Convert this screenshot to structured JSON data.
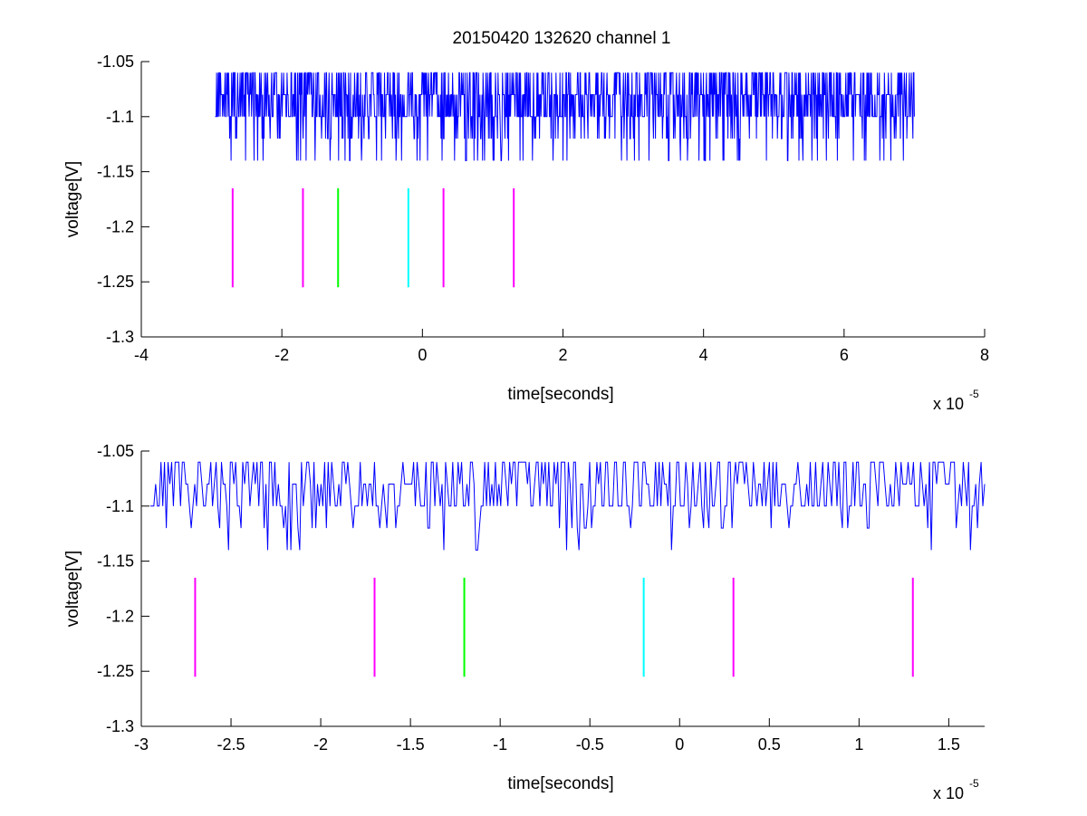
{
  "figure": {
    "title": "20150420 132620 channel 1",
    "background": "#ffffff",
    "trace_color": "#0000ff"
  },
  "chart_data": [
    {
      "type": "line",
      "title": "20150420 132620 channel 1",
      "xlabel": "time[seconds]",
      "ylabel": "voltage[V]",
      "x_multiplier_text": "x 10",
      "x_multiplier_exponent": "-5",
      "x_scale": 1e-05,
      "xlim": [
        -4,
        8
      ],
      "ylim": [
        -1.3,
        -1.05
      ],
      "xticks": [
        -4,
        -2,
        0,
        2,
        4,
        6,
        8
      ],
      "xtick_labels": [
        "-4",
        "-2",
        "0",
        "2",
        "4",
        "6",
        "8"
      ],
      "yticks": [
        -1.05,
        -1.1,
        -1.15,
        -1.2,
        -1.25,
        -1.3
      ],
      "ytick_labels": [
        "-1.05",
        "-1.1",
        "-1.15",
        "-1.2",
        "-1.25",
        "-1.3"
      ],
      "grid": false,
      "series": [
        {
          "kind": "noise-trace",
          "color": "#0000ff",
          "x_range": [
            -2.95,
            7.0
          ],
          "baseline": -1.1,
          "levels": [
            -1.06,
            -1.08,
            -1.1,
            -1.12,
            -1.14
          ],
          "points": 1400,
          "seed": 11
        }
      ],
      "markers": {
        "y_range": [
          -1.165,
          -1.255
        ],
        "items": [
          {
            "x": -2.7,
            "color": "#ff00ff"
          },
          {
            "x": -1.7,
            "color": "#ff00ff"
          },
          {
            "x": -1.2,
            "color": "#00ff00"
          },
          {
            "x": -0.2,
            "color": "#00ffff"
          },
          {
            "x": 0.3,
            "color": "#ff00ff"
          },
          {
            "x": 1.3,
            "color": "#ff00ff"
          }
        ]
      }
    },
    {
      "type": "line",
      "xlabel": "time[seconds]",
      "ylabel": "voltage[V]",
      "x_multiplier_text": "x 10",
      "x_multiplier_exponent": "-5",
      "x_scale": 1e-05,
      "xlim": [
        -3.0,
        1.7
      ],
      "ylim": [
        -1.3,
        -1.05
      ],
      "xticks": [
        -3,
        -2.5,
        -2,
        -1.5,
        -1,
        -0.5,
        0,
        0.5,
        1,
        1.5
      ],
      "xtick_labels": [
        "-3",
        "-2.5",
        "-2",
        "-1.5",
        "-1",
        "-0.5",
        "0",
        "0.5",
        "1",
        "1.5"
      ],
      "yticks": [
        -1.05,
        -1.1,
        -1.15,
        -1.2,
        -1.25,
        -1.3
      ],
      "ytick_labels": [
        "-1.05",
        "-1.1",
        "-1.15",
        "-1.2",
        "-1.25",
        "-1.3"
      ],
      "grid": false,
      "series": [
        {
          "kind": "noise-trace",
          "color": "#0000ff",
          "x_range": [
            -2.95,
            1.7
          ],
          "baseline": -1.1,
          "levels": [
            -1.06,
            -1.08,
            -1.1,
            -1.12,
            -1.14
          ],
          "points": 470,
          "seed": 23
        }
      ],
      "markers": {
        "y_range": [
          -1.165,
          -1.255
        ],
        "items": [
          {
            "x": -2.7,
            "color": "#ff00ff"
          },
          {
            "x": -1.7,
            "color": "#ff00ff"
          },
          {
            "x": -1.2,
            "color": "#00ff00"
          },
          {
            "x": -0.2,
            "color": "#00ffff"
          },
          {
            "x": 0.3,
            "color": "#ff00ff"
          },
          {
            "x": 1.3,
            "color": "#ff00ff"
          }
        ]
      }
    }
  ]
}
